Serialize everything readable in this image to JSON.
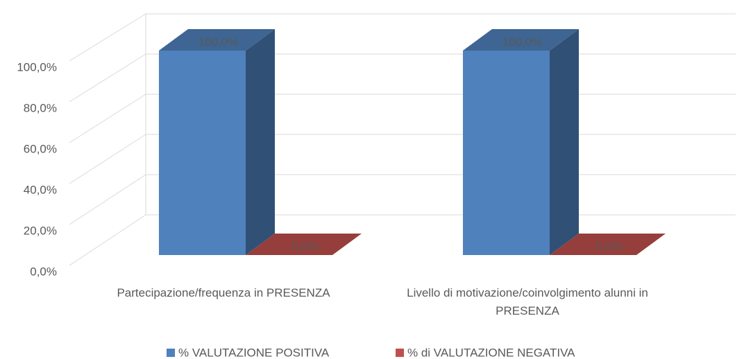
{
  "chart_data": {
    "type": "bar3d",
    "categories": [
      "Partecipazione/frequenza in PRESENZA",
      "Livello di motivazione/coinvolgimento alunni in PRESENZA"
    ],
    "series": [
      {
        "name": "% VALUTAZIONE POSITIVA",
        "color": "#4f81bd",
        "values": [
          100,
          100
        ],
        "value_labels": [
          "100,0%",
          "100,0%"
        ]
      },
      {
        "name": "% di VALUTAZIONE NEGATIVA",
        "color": "#c0504d",
        "values": [
          0,
          0
        ],
        "value_labels": [
          "0,0%",
          "0,0%"
        ]
      }
    ],
    "ylim": [
      0,
      100
    ],
    "yticks": [
      {
        "value": 0,
        "label": "0,0%"
      },
      {
        "value": 20,
        "label": "20,0%"
      },
      {
        "value": 40,
        "label": "40,0%"
      },
      {
        "value": 60,
        "label": "60,0%"
      },
      {
        "value": 80,
        "label": "80,0%"
      },
      {
        "value": 100,
        "label": "100,0%"
      }
    ],
    "grid": true,
    "legend": "bottom"
  }
}
